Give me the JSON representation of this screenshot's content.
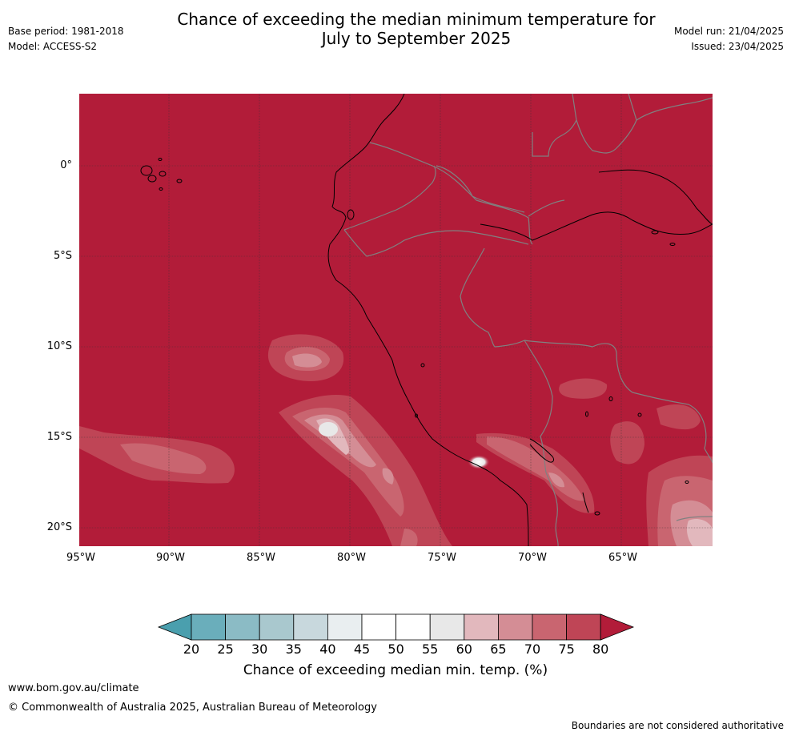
{
  "header": {
    "title_line1": "Chance of exceeding the median minimum temperature for",
    "title_line2": "July to September 2025",
    "base_period": "Base period: 1981-2018",
    "model": "Model: ACCESS-S2",
    "model_run": "Model run: 21/04/2025",
    "issued": "Issued: 23/04/2025"
  },
  "map": {
    "lat_labels": [
      "0°",
      "5°S",
      "10°S",
      "15°S",
      "20°S"
    ],
    "lon_labels": [
      "95°W",
      "90°W",
      "85°W",
      "80°W",
      "75°W",
      "70°W",
      "65°W"
    ],
    "background_category": "80+",
    "colors": {
      "c80plus": "#b21c39",
      "c75": "#bf4556",
      "c70": "#c96570",
      "c65": "#d48d95",
      "c60": "#e2b8bd",
      "c55": "#e8e8e8",
      "coastline": "#000000",
      "border": "#808080",
      "grid": "#333333"
    }
  },
  "colorbar": {
    "labels": [
      "20",
      "25",
      "30",
      "35",
      "40",
      "45",
      "50",
      "55",
      "60",
      "65",
      "70",
      "75",
      "80"
    ],
    "colors": [
      "#4a9fae",
      "#6aaebb",
      "#8bbbc5",
      "#a9c8ce",
      "#c8d8dd",
      "#e9eef0",
      "#ffffff",
      "#ffffff",
      "#e8e8e8",
      "#e2b8bd",
      "#d48d95",
      "#c96570",
      "#bf4556",
      "#b21c39"
    ],
    "title": "Chance of exceeding median min. temp. (%)"
  },
  "footer": {
    "website": "www.bom.gov.au/climate",
    "copyright": "© Commonwealth of Australia 2025, Australian Bureau of Meteorology",
    "disclaimer": "Boundaries are not considered authoritative"
  }
}
